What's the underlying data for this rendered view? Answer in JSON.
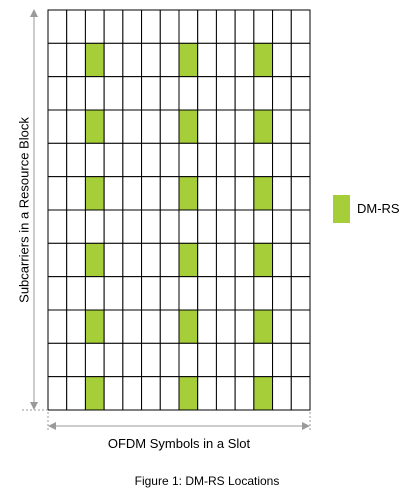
{
  "diagram": {
    "columns": 14,
    "rows": 12,
    "dmrs_columns": [
      2,
      7,
      11
    ],
    "dmrs_rows": [
      1,
      3,
      5,
      7,
      9,
      11
    ],
    "colors": {
      "dmrs": "#a6ce39",
      "grid_line": "#000000",
      "dimension_line": "#9a9a9a"
    }
  },
  "legend": {
    "label": "DM-RS"
  },
  "xlabel": "OFDM Symbols in a Slot",
  "ylabel": "Subcarriers in a Resource Block",
  "caption": "Figure 1: DM-RS Locations"
}
